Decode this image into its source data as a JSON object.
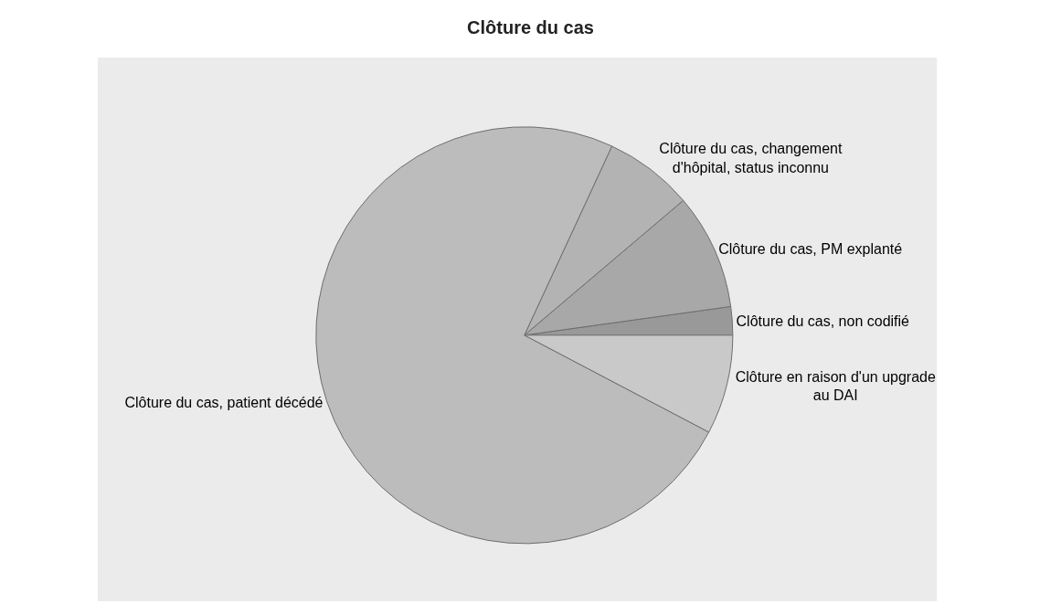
{
  "chart_data": {
    "type": "pie",
    "title": "Clôture du cas",
    "categories": [
      "Clôture du cas, non codifié",
      "Clôture du cas, PM explanté",
      "Clôture du cas, changement d'hôpital, status inconnu",
      "Clôture du cas, patient décédé",
      "Clôture en raison d'un upgrade au DAI"
    ],
    "values": [
      2.2,
      9.0,
      6.9,
      74.2,
      7.7
    ],
    "colors": [
      "#999999",
      "#a8a8a8",
      "#b3b3b3",
      "#bcbcbc",
      "#c9c9c9"
    ],
    "legend": false
  }
}
